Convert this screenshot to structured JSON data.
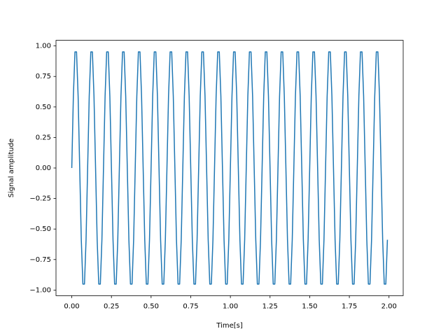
{
  "chart_data": {
    "type": "line",
    "xlabel": "Time[s]",
    "ylabel": "Signal amplitude",
    "color": "#1f77b4",
    "x": [
      0,
      0.01,
      0.02,
      0.03,
      0.04,
      0.05,
      0.06,
      0.07,
      0.08,
      0.09,
      0.1,
      0.11,
      0.12,
      0.13,
      0.14,
      0.15,
      0.16,
      0.17,
      0.18,
      0.19,
      0.2,
      0.21,
      0.22,
      0.23,
      0.24,
      0.25,
      0.26,
      0.27,
      0.28,
      0.29,
      0.3,
      0.31,
      0.32,
      0.33,
      0.34,
      0.35,
      0.36,
      0.37,
      0.38,
      0.39,
      0.4,
      0.41,
      0.42,
      0.43,
      0.44,
      0.45,
      0.46,
      0.47,
      0.48,
      0.49,
      0.5,
      0.51,
      0.52,
      0.53,
      0.54,
      0.55,
      0.56,
      0.57,
      0.58,
      0.59,
      0.6,
      0.61,
      0.62,
      0.63,
      0.64,
      0.65,
      0.66,
      0.67,
      0.68,
      0.69,
      0.7,
      0.71,
      0.72,
      0.73,
      0.74,
      0.75,
      0.76,
      0.77,
      0.78,
      0.79,
      0.8,
      0.81,
      0.82,
      0.83,
      0.84,
      0.85,
      0.86,
      0.87,
      0.88,
      0.89,
      0.9,
      0.91,
      0.92,
      0.93,
      0.94,
      0.95,
      0.96,
      0.97,
      0.98,
      0.99,
      1,
      1.01,
      1.02,
      1.03,
      1.04,
      1.05,
      1.06,
      1.07,
      1.08,
      1.09,
      1.1,
      1.11,
      1.12,
      1.13,
      1.14,
      1.15,
      1.16,
      1.17,
      1.18,
      1.19,
      1.2,
      1.21,
      1.22,
      1.23,
      1.24,
      1.25,
      1.26,
      1.27,
      1.28,
      1.29,
      1.3,
      1.31,
      1.32,
      1.33,
      1.34,
      1.35,
      1.36,
      1.37,
      1.38,
      1.39,
      1.4,
      1.41,
      1.42,
      1.43,
      1.44,
      1.45,
      1.46,
      1.47,
      1.48,
      1.49,
      1.5,
      1.51,
      1.52,
      1.53,
      1.54,
      1.55,
      1.56,
      1.57,
      1.58,
      1.59,
      1.6,
      1.61,
      1.62,
      1.63,
      1.64,
      1.65,
      1.66,
      1.67,
      1.68,
      1.69,
      1.7,
      1.71,
      1.72,
      1.73,
      1.74,
      1.75,
      1.76,
      1.77,
      1.78,
      1.79,
      1.8,
      1.81,
      1.82,
      1.83,
      1.84,
      1.85,
      1.86,
      1.87,
      1.88,
      1.89,
      1.9,
      1.91,
      1.92,
      1.93,
      1.94,
      1.95,
      1.96,
      1.97,
      1.98,
      1.99
    ],
    "values": [
      0,
      0.588,
      0.951,
      0.951,
      0.588,
      0,
      -0.588,
      -0.951,
      -0.951,
      -0.588,
      0,
      0.588,
      0.951,
      0.951,
      0.588,
      0,
      -0.588,
      -0.951,
      -0.951,
      -0.588,
      0,
      0.588,
      0.951,
      0.951,
      0.588,
      0,
      -0.588,
      -0.951,
      -0.951,
      -0.588,
      0,
      0.588,
      0.951,
      0.951,
      0.588,
      0,
      -0.588,
      -0.951,
      -0.951,
      -0.588,
      0,
      0.588,
      0.951,
      0.951,
      0.588,
      0,
      -0.588,
      -0.951,
      -0.951,
      -0.588,
      0,
      0.588,
      0.951,
      0.951,
      0.588,
      0,
      -0.588,
      -0.951,
      -0.951,
      -0.588,
      0,
      0.588,
      0.951,
      0.951,
      0.588,
      0,
      -0.588,
      -0.951,
      -0.951,
      -0.588,
      0,
      0.588,
      0.951,
      0.951,
      0.588,
      0,
      -0.588,
      -0.951,
      -0.951,
      -0.588,
      0,
      0.588,
      0.951,
      0.951,
      0.588,
      0,
      -0.588,
      -0.951,
      -0.951,
      -0.588,
      0,
      0.588,
      0.951,
      0.951,
      0.588,
      0,
      -0.588,
      -0.951,
      -0.951,
      -0.588,
      0,
      0.588,
      0.951,
      0.951,
      0.588,
      0,
      -0.588,
      -0.951,
      -0.951,
      -0.588,
      0,
      0.588,
      0.951,
      0.951,
      0.588,
      0,
      -0.588,
      -0.951,
      -0.951,
      -0.588,
      0,
      0.588,
      0.951,
      0.951,
      0.588,
      0,
      -0.588,
      -0.951,
      -0.951,
      -0.588,
      0,
      0.588,
      0.951,
      0.951,
      0.588,
      0,
      -0.588,
      -0.951,
      -0.951,
      -0.588,
      0,
      0.588,
      0.951,
      0.951,
      0.588,
      0,
      -0.588,
      -0.951,
      -0.951,
      -0.588,
      0,
      0.588,
      0.951,
      0.951,
      0.588,
      0,
      -0.588,
      -0.951,
      -0.951,
      -0.588,
      0,
      0.588,
      0.951,
      0.951,
      0.588,
      0,
      -0.588,
      -0.951,
      -0.951,
      -0.588,
      0,
      0.588,
      0.951,
      0.951,
      0.588,
      0,
      -0.588,
      -0.951,
      -0.951,
      -0.588,
      0,
      0.588,
      0.951,
      0.951,
      0.588,
      0,
      -0.588,
      -0.951,
      -0.951,
      -0.588,
      0,
      0.588,
      0.951,
      0.951,
      0.588,
      0,
      -0.588,
      -0.951,
      -0.951,
      -0.588
    ],
    "xlim": [
      -0.0995,
      2.0895
    ],
    "ylim": [
      -1.046,
      1.046
    ],
    "xticks": [
      {
        "value": 0,
        "label": "0.00"
      },
      {
        "value": 0.25,
        "label": "0.25"
      },
      {
        "value": 0.5,
        "label": "0.50"
      },
      {
        "value": 0.75,
        "label": "0.75"
      },
      {
        "value": 1,
        "label": "1.00"
      },
      {
        "value": 1.25,
        "label": "1.25"
      },
      {
        "value": 1.5,
        "label": "1.50"
      },
      {
        "value": 1.75,
        "label": "1.75"
      },
      {
        "value": 2,
        "label": "2.00"
      }
    ],
    "yticks": [
      {
        "value": -1,
        "label": "−1.00"
      },
      {
        "value": -0.75,
        "label": "−0.75"
      },
      {
        "value": -0.5,
        "label": "−0.50"
      },
      {
        "value": -0.25,
        "label": "−0.25"
      },
      {
        "value": 0,
        "label": "0.00"
      },
      {
        "value": 0.25,
        "label": "0.25"
      },
      {
        "value": 0.5,
        "label": "0.50"
      },
      {
        "value": 0.75,
        "label": "0.75"
      },
      {
        "value": 1,
        "label": "1.00"
      }
    ],
    "grid": false
  }
}
